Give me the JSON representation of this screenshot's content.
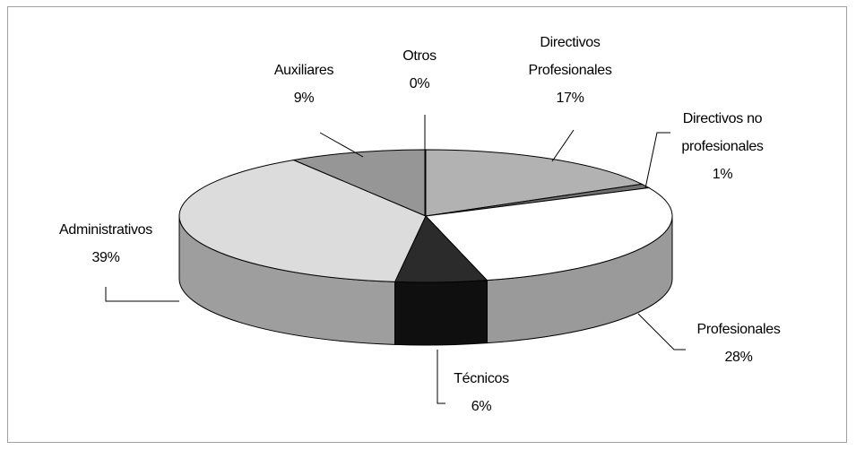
{
  "chart_data": {
    "type": "pie",
    "style": "3d",
    "title": "",
    "legend": "none",
    "slices": [
      {
        "label_lines": [
          "Directivos",
          "Profesionales"
        ],
        "percent_label": "17%",
        "value": 17,
        "color": "#b2b2b2"
      },
      {
        "label_lines": [
          "Directivos no",
          "profesionales"
        ],
        "percent_label": "1%",
        "value": 1,
        "color": "#6f6f6f"
      },
      {
        "label_lines": [
          "Profesionales"
        ],
        "percent_label": "28%",
        "value": 28,
        "color": "#ffffff"
      },
      {
        "label_lines": [
          "Técnicos"
        ],
        "percent_label": "6%",
        "value": 6,
        "color": "#2b2b2b"
      },
      {
        "label_lines": [
          "Administrativos"
        ],
        "percent_label": "39%",
        "value": 39,
        "color": "#dcdcdc"
      },
      {
        "label_lines": [
          "Auxiliares"
        ],
        "percent_label": "9%",
        "value": 9,
        "color": "#969696"
      },
      {
        "label_lines": [
          "Otros"
        ],
        "percent_label": "0%",
        "value": 0,
        "color": "#d0d0d0"
      }
    ]
  }
}
